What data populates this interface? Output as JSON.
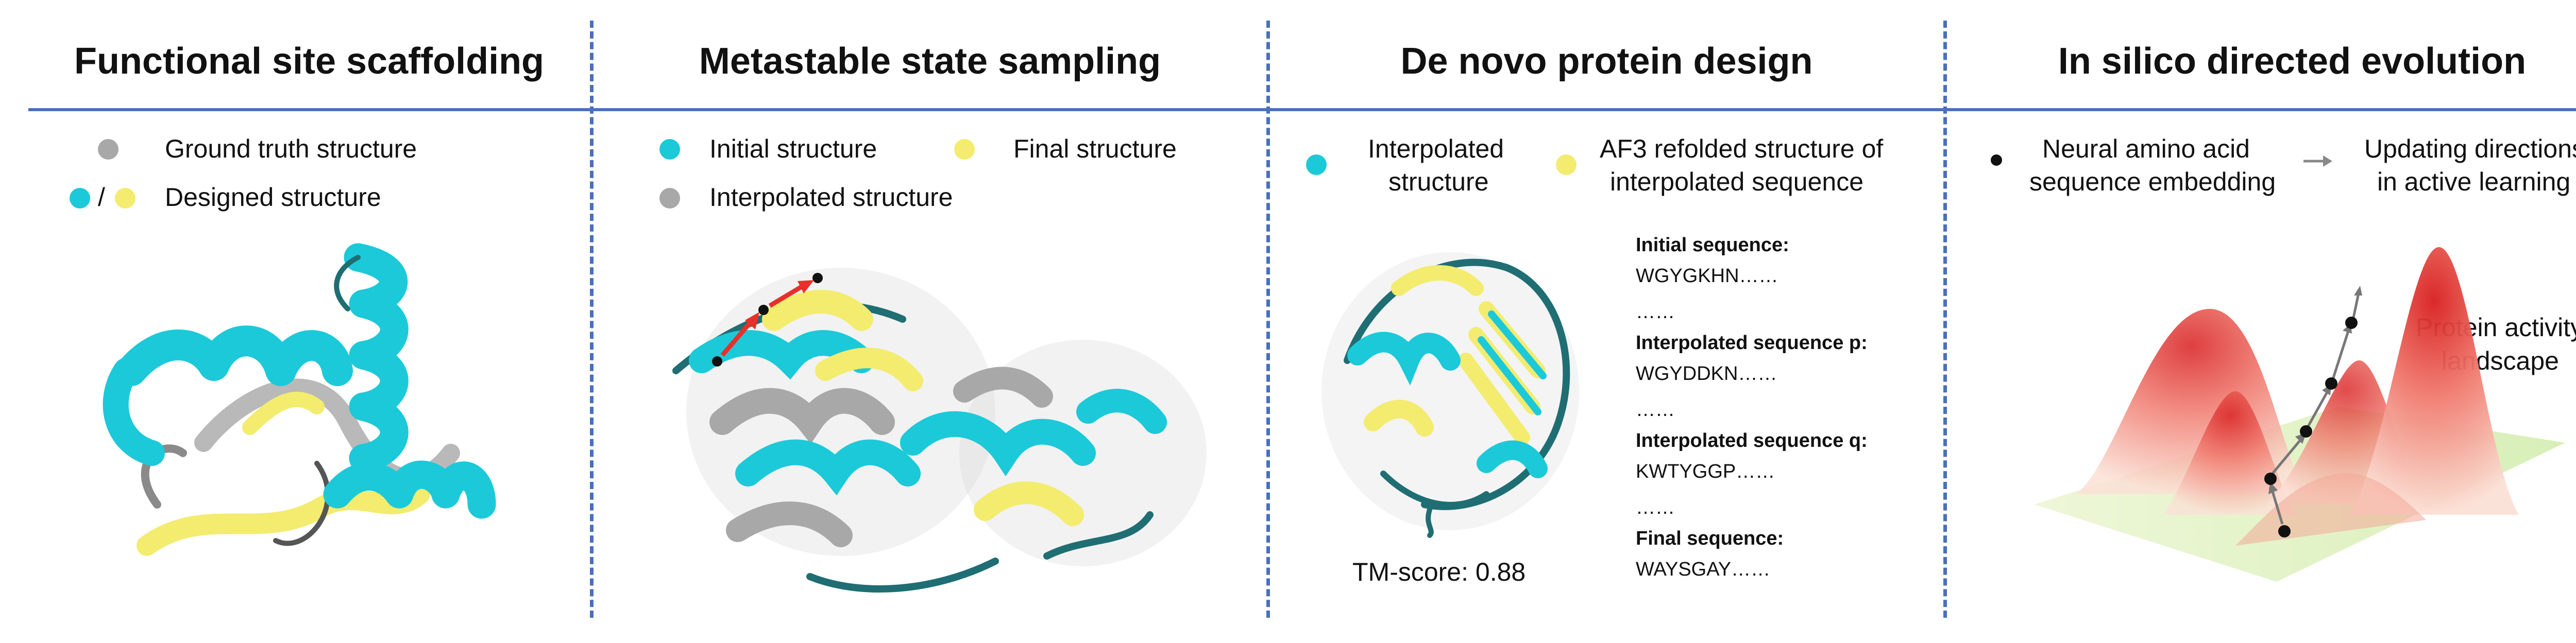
{
  "panels": [
    {
      "title": "Functional site scaffolding",
      "legend": {
        "gt": "Ground truth structure",
        "sep": "/",
        "designed": "Designed structure"
      }
    },
    {
      "title": "Metastable state sampling",
      "legend": {
        "initial": "Initial structure",
        "final": "Final structure",
        "interp": "Interpolated structure"
      }
    },
    {
      "title": "De novo protein design",
      "legend": {
        "interp1": "Interpolated",
        "interp2": "structure",
        "af3_1": "AF3 refolded structure of",
        "af3_2": "interpolated sequence"
      },
      "sequences": [
        {
          "label": "Initial sequence:",
          "value": "WGYGKHN……"
        },
        {
          "label": "Interpolated sequence p:",
          "value": "WGYDDKN……"
        },
        {
          "label": "Interpolated sequence q:",
          "value": "KWTYGGP……"
        },
        {
          "label": "Final sequence:",
          "value": "WAYSGAY……"
        }
      ],
      "ellipsis": "……",
      "tm_score": "TM-score: 0.88"
    },
    {
      "title": "In silico directed evolution",
      "legend": {
        "emb1": "Neural amino acid",
        "emb2": "sequence embedding",
        "upd1": "Updating directions",
        "upd2": "in active learning",
        "land1": "Protein activity",
        "land2": "landscape"
      }
    }
  ],
  "colors": {
    "cyan": "#1cc9d9",
    "yellow": "#f3ec6f",
    "gray": "#a8a8a8",
    "teal": "#1f6e73",
    "accent": "#4a70bb",
    "red": "#e8302a"
  }
}
